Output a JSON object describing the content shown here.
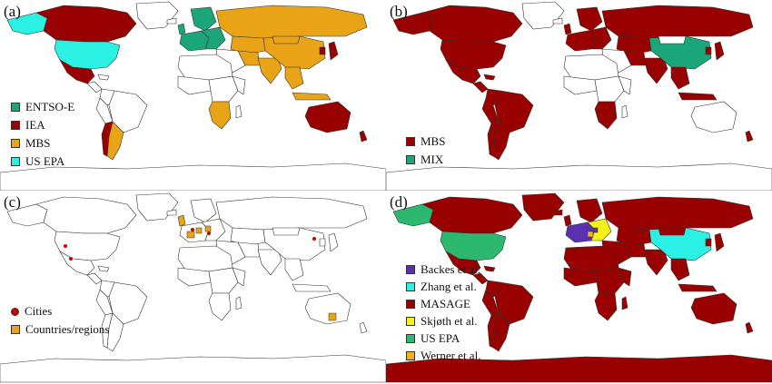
{
  "colors": {
    "dark_red": "#990000",
    "green": "#1aa678",
    "light_green": "#2db870",
    "orange": "#e8a317",
    "cyan": "#2bf0e4",
    "purple": "#5a2fb0",
    "yellow": "#f5f01a",
    "amber": "#f0b020",
    "boundary": "#333333",
    "land_white": "#ffffff"
  },
  "panels": [
    {
      "label": "(a)",
      "legend": [
        {
          "text": "ENTSO-E",
          "color": "#1aa678"
        },
        {
          "text": "IEA",
          "color": "#990000"
        },
        {
          "text": "MBS",
          "color": "#e8a317"
        },
        {
          "text": "US EPA",
          "color": "#2bf0e4"
        }
      ]
    },
    {
      "label": "(b)",
      "legend": [
        {
          "text": "MBS",
          "color": "#990000"
        },
        {
          "text": "MIX",
          "color": "#1aa678"
        }
      ]
    },
    {
      "label": "(c)",
      "legend": [
        {
          "text": "Cities",
          "color": "#cc0000",
          "marker": "dot"
        },
        {
          "text": "Countries/regions",
          "color": "#e8a317"
        }
      ]
    },
    {
      "label": "(d)",
      "legend": [
        {
          "text": "Backes et al.",
          "color": "#5a2fb0"
        },
        {
          "text": "Zhang et al.",
          "color": "#2bf0e4"
        },
        {
          "text": "MASAGE",
          "color": "#990000"
        },
        {
          "text": "Skjøth et al.",
          "color": "#f5f01a"
        },
        {
          "text": "US EPA",
          "color": "#2db870"
        },
        {
          "text": "Werner et al.",
          "color": "#f0b020"
        }
      ]
    }
  ]
}
